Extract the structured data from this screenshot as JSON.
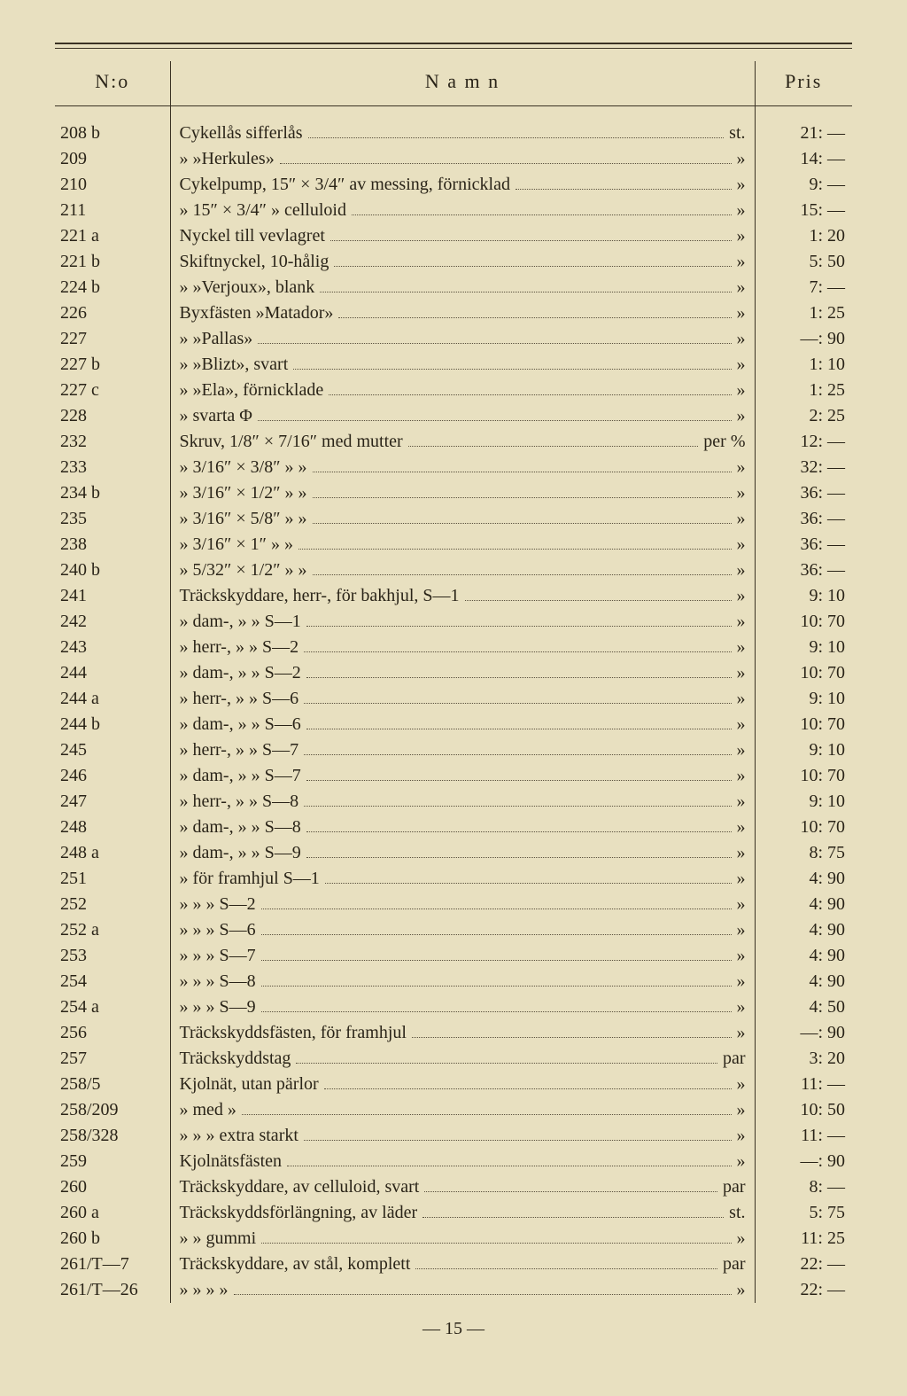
{
  "header": {
    "no": "N:o",
    "name": "N a m n",
    "pris": "Pris"
  },
  "rows": [
    {
      "no": "208 b",
      "name": "Cykellås sifferlås",
      "unit": "st.",
      "pris": "21: —"
    },
    {
      "no": "209",
      "name": "»        »Herkules»",
      "unit": "»",
      "pris": "14: —"
    },
    {
      "no": "210",
      "name": "Cykelpump, 15″ × 3/4″ av messing, förnicklad",
      "unit": "»",
      "pris": "9: —"
    },
    {
      "no": "211",
      "name": "»        15″ × 3/4″   »   celluloid",
      "unit": "»",
      "pris": "15: —"
    },
    {
      "no": "221 a",
      "name": "Nyckel till vevlagret",
      "unit": "»",
      "pris": "1: 20"
    },
    {
      "no": "221 b",
      "name": "Skiftnyckel, 10-hålig",
      "unit": "»",
      "pris": "5: 50"
    },
    {
      "no": "224 b",
      "name": "»        »Verjoux», blank",
      "unit": "»",
      "pris": "7: —"
    },
    {
      "no": "226",
      "name": "Byxfästen »Matador»",
      "unit": "»",
      "pris": "1: 25"
    },
    {
      "no": "227",
      "name": "»        »Pallas»",
      "unit": "»",
      "pris": "—: 90"
    },
    {
      "no": "227 b",
      "name": "»        »Blizt», svart",
      "unit": "»",
      "pris": "1: 10"
    },
    {
      "no": "227 c",
      "name": "»        »Ela», förnicklade",
      "unit": "»",
      "pris": "1: 25"
    },
    {
      "no": "228",
      "name": "»        svarta Φ",
      "unit": "»",
      "pris": "2: 25"
    },
    {
      "no": "232",
      "name": "Skruv, 1/8″ × 7/16″ med mutter",
      "unit": "per %",
      "pris": "12: —"
    },
    {
      "no": "233",
      "name": "»     3/16″ × 3/8″   »        »",
      "unit": "»",
      "pris": "32: —"
    },
    {
      "no": "234 b",
      "name": "»     3/16″ × 1/2″   »        »",
      "unit": "»",
      "pris": "36: —"
    },
    {
      "no": "235",
      "name": "»     3/16″ × 5/8″   »        »",
      "unit": "»",
      "pris": "36: —"
    },
    {
      "no": "238",
      "name": "»     3/16″ × 1″     »        »",
      "unit": "»",
      "pris": "36: —"
    },
    {
      "no": "240 b",
      "name": "»     5/32″ × 1/2″   »        »",
      "unit": "»",
      "pris": "36: —"
    },
    {
      "no": "241",
      "name": "Träckskyddare, herr-, för bakhjul, S—1",
      "unit": "»",
      "pris": "9: 10"
    },
    {
      "no": "242",
      "name": "»        dam-,   »      »     S—1",
      "unit": "»",
      "pris": "10: 70"
    },
    {
      "no": "243",
      "name": "»        herr-,  »      »     S—2",
      "unit": "»",
      "pris": "9: 10"
    },
    {
      "no": "244",
      "name": "»        dam-,   »      »     S—2",
      "unit": "»",
      "pris": "10: 70"
    },
    {
      "no": "244 a",
      "name": "»        herr-,  »      »     S—6",
      "unit": "»",
      "pris": "9: 10"
    },
    {
      "no": "244 b",
      "name": "»        dam-,   »      »     S—6",
      "unit": "»",
      "pris": "10: 70"
    },
    {
      "no": "245",
      "name": "»        herr-,  »      »     S—7",
      "unit": "»",
      "pris": "9: 10"
    },
    {
      "no": "246",
      "name": "»        dam-,   »      »     S—7",
      "unit": "»",
      "pris": "10: 70"
    },
    {
      "no": "247",
      "name": "»        herr-,  »      »     S—8",
      "unit": "»",
      "pris": "9: 10"
    },
    {
      "no": "248",
      "name": "»        dam-,   »      »     S—8",
      "unit": "»",
      "pris": "10: 70"
    },
    {
      "no": "248 a",
      "name": "»        dam-,   »      »     S—9",
      "unit": "»",
      "pris": "8: 75"
    },
    {
      "no": "251",
      "name": "»        för framhjul  S—1",
      "unit": "»",
      "pris": "4: 90"
    },
    {
      "no": "252",
      "name": "»          »      »    S—2",
      "unit": "»",
      "pris": "4: 90"
    },
    {
      "no": "252 a",
      "name": "»          »      »    S—6",
      "unit": "»",
      "pris": "4: 90"
    },
    {
      "no": "253",
      "name": "»          »      »    S—7",
      "unit": "»",
      "pris": "4: 90"
    },
    {
      "no": "254",
      "name": "»          »      »    S—8",
      "unit": "»",
      "pris": "4: 90"
    },
    {
      "no": "254 a",
      "name": "»          »      »    S—9",
      "unit": "»",
      "pris": "4: 50"
    },
    {
      "no": "256",
      "name": "Träckskyddsfästen, för framhjul",
      "unit": "»",
      "pris": "—: 90"
    },
    {
      "no": "257",
      "name": "Träckskyddstag",
      "unit": "par",
      "pris": "3: 20"
    },
    {
      "no": "258/5",
      "name": "Kjolnät, utan pärlor",
      "unit": "»",
      "pris": "11: —"
    },
    {
      "no": "258/209",
      "name": "»     med    »",
      "unit": "»",
      "pris": "10: 50"
    },
    {
      "no": "258/328",
      "name": "»      »      »   extra starkt",
      "unit": "»",
      "pris": "11: —"
    },
    {
      "no": "259",
      "name": "Kjolnätsfästen",
      "unit": "»",
      "pris": "—: 90"
    },
    {
      "no": "260",
      "name": "Träckskyddare, av celluloid, svart",
      "unit": "par",
      "pris": "8: —"
    },
    {
      "no": "260 a",
      "name": "Träckskyddsförlängning, av läder",
      "unit": "st.",
      "pris": "5: 75"
    },
    {
      "no": "260 b",
      "name": "»              »  gummi",
      "unit": "»",
      "pris": "11: 25"
    },
    {
      "no": "261/T—7",
      "name": "Träckskyddare, av stål, komplett",
      "unit": "par",
      "pris": "22: —"
    },
    {
      "no": "261/T—26",
      "name": "»        »   »      »",
      "unit": "»",
      "pris": "22: —"
    }
  ],
  "footer": "— 15 —"
}
